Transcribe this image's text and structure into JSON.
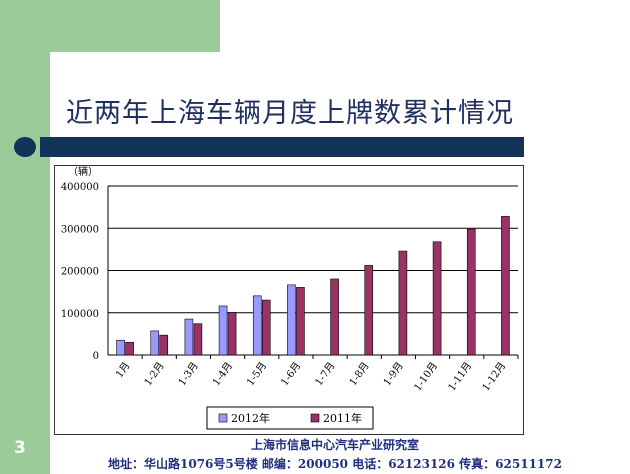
{
  "slide": {
    "title": "近两年上海车辆月度上牌数累计情况",
    "number": "3",
    "footer_org": "上海市信息中心汽车产业研究室",
    "footer_contact": "地址：华山路1076号5号楼 邮编：200050 电话：62123126 传真：62511172"
  },
  "colors": {
    "green": "#99cc99",
    "navy": "#12335a",
    "series_2012": "#9999ff",
    "series_2011": "#993366"
  },
  "chart_data": {
    "type": "bar",
    "title": "",
    "xlabel": "",
    "ylabel": "（辆）",
    "ylim": [
      0,
      400000
    ],
    "yticks": [
      0,
      100000,
      200000,
      300000,
      400000
    ],
    "ytick_labels": [
      "0",
      "100000",
      "200000",
      "300000",
      "400000"
    ],
    "grid": true,
    "legend_position": "bottom",
    "categories": [
      "1月",
      "1-2月",
      "1-3月",
      "1-4月",
      "1-5月",
      "1-6月",
      "1-7月",
      "1-8月",
      "1-9月",
      "1-10月",
      "1-11月",
      "1-12月"
    ],
    "series": [
      {
        "name": "2012年",
        "values": [
          35000,
          57000,
          85000,
          116000,
          140000,
          166000,
          null,
          null,
          null,
          null,
          null,
          null
        ]
      },
      {
        "name": "2011年",
        "values": [
          30000,
          47000,
          74000,
          101000,
          130000,
          160000,
          180000,
          212000,
          246000,
          268000,
          298000,
          328000
        ]
      }
    ]
  }
}
